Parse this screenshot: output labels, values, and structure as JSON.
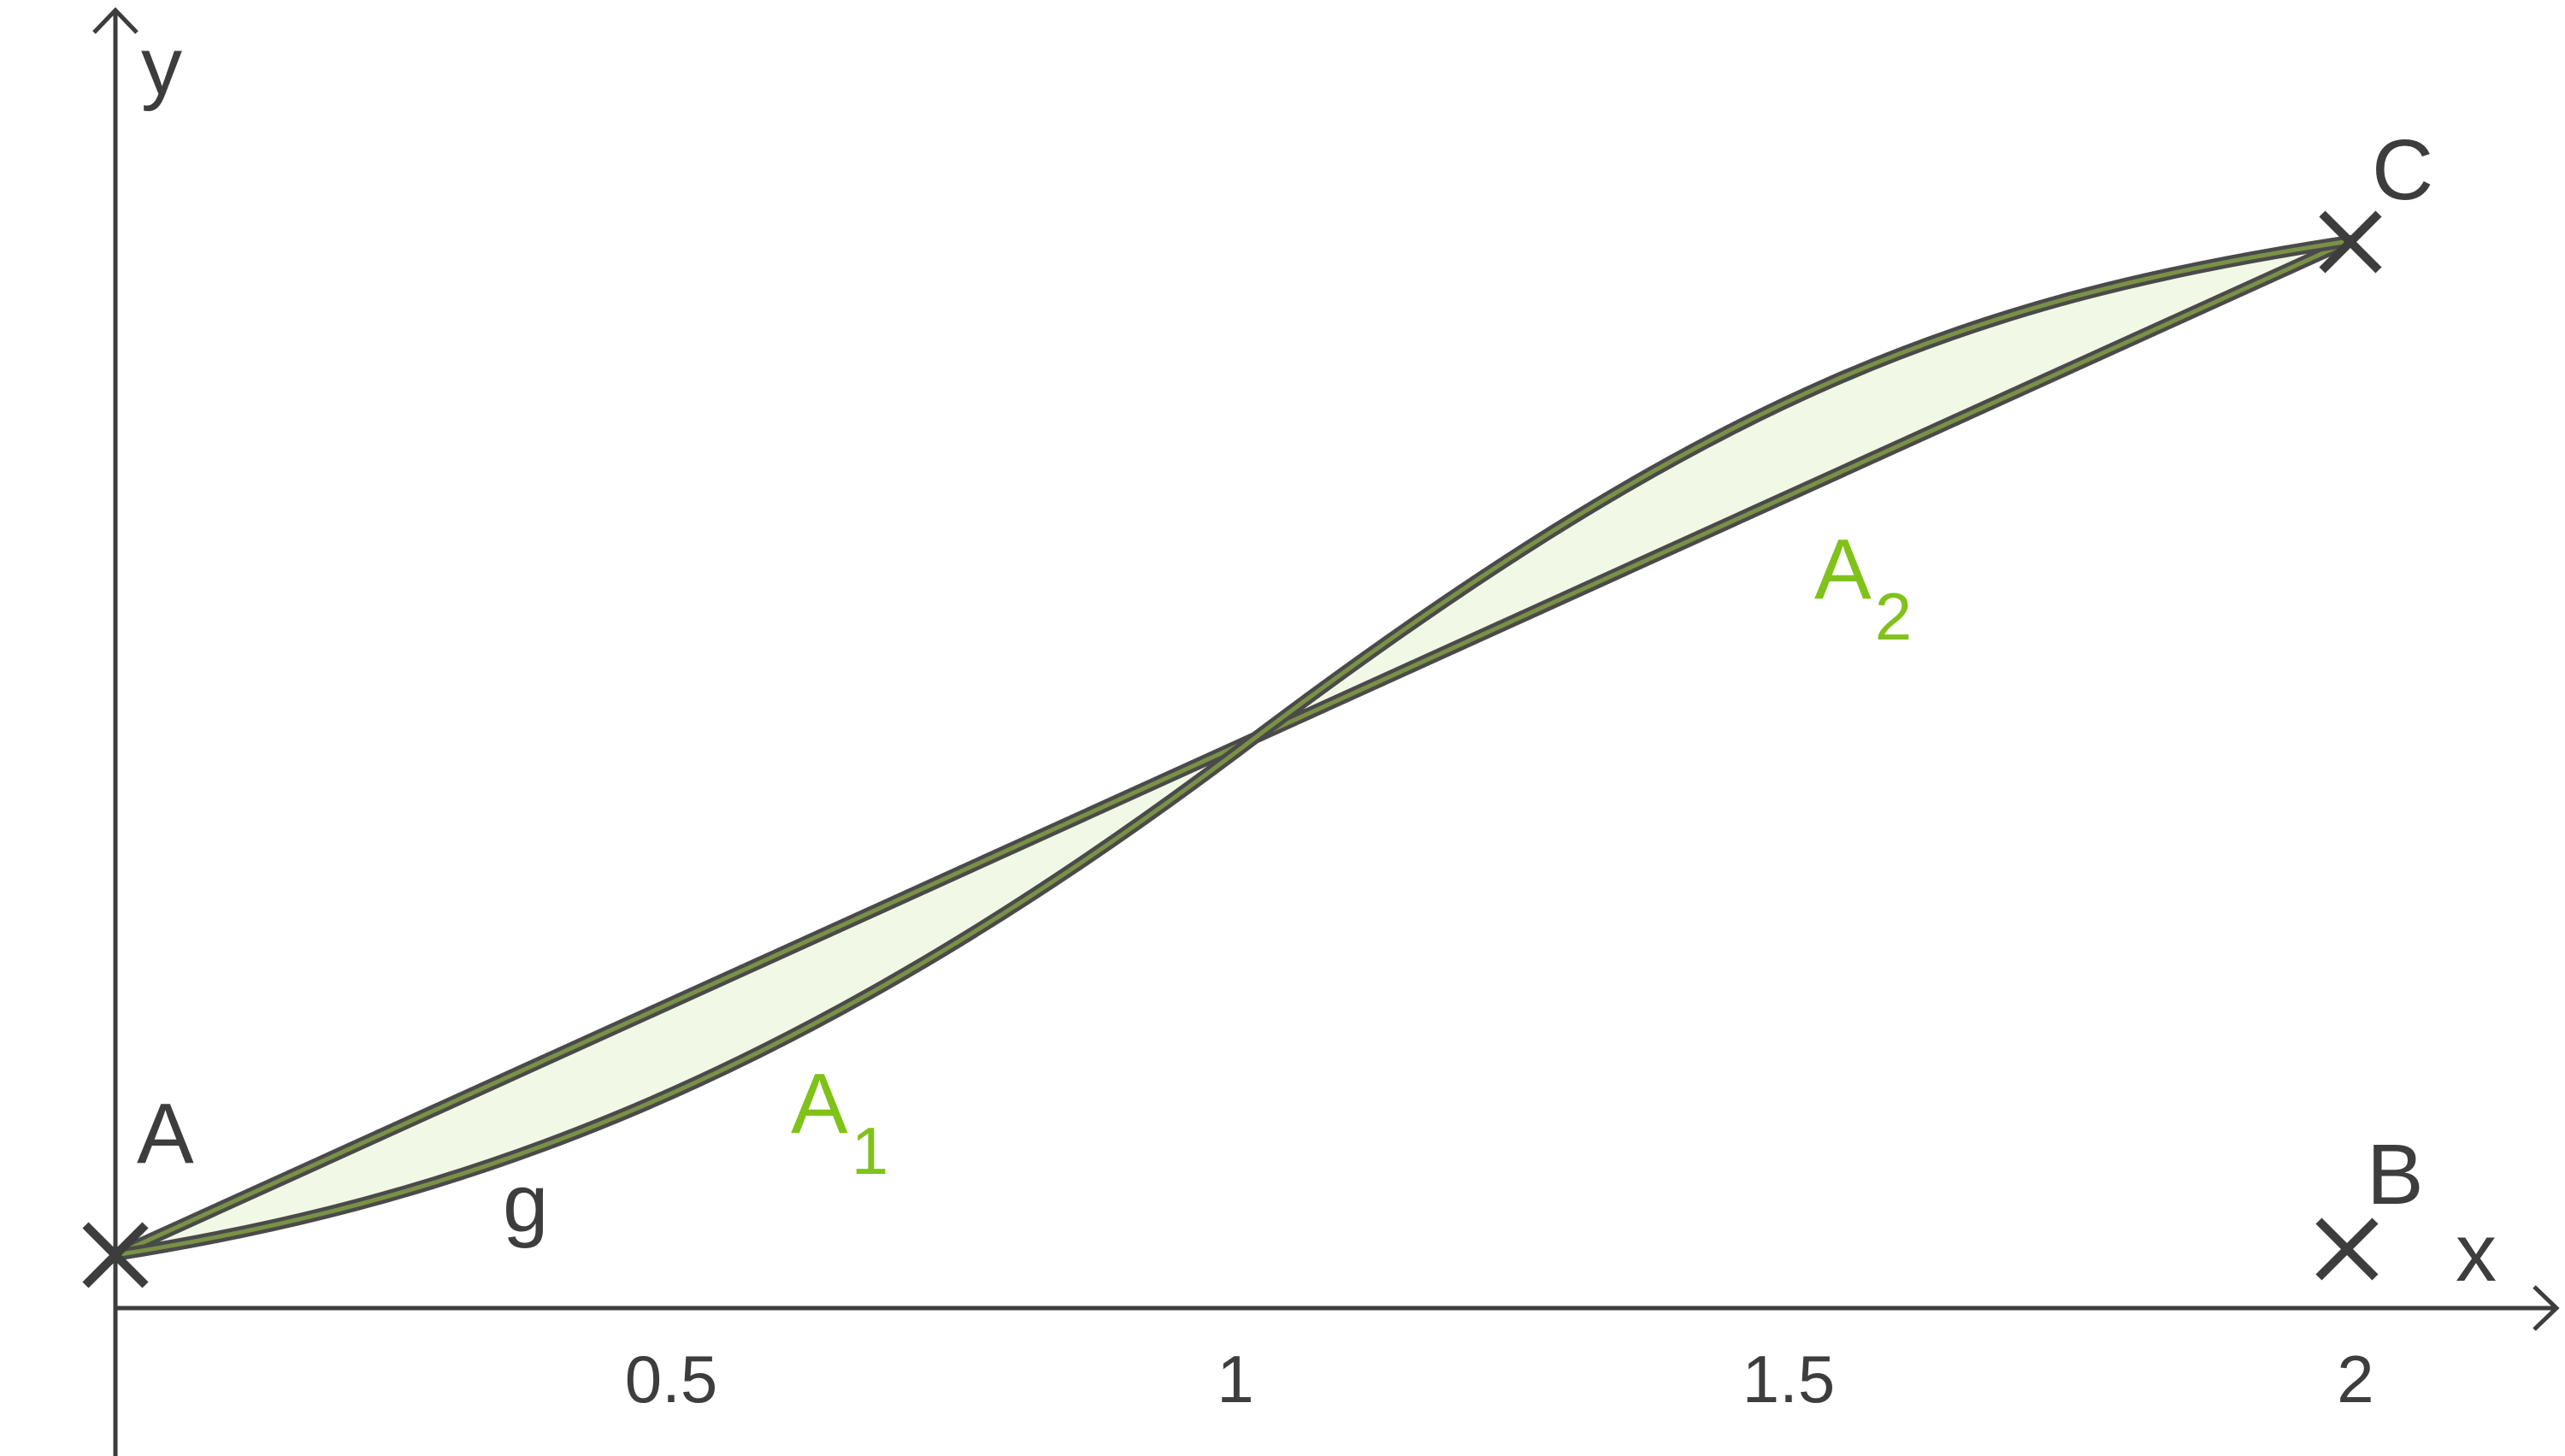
{
  "axes": {
    "x_label": "x",
    "y_label": "y",
    "x_ticks": [
      "0.5",
      "1",
      "1.5",
      "2"
    ]
  },
  "points": {
    "A": {
      "label": "A",
      "x": 0,
      "y": 0.05
    },
    "B": {
      "label": "B",
      "x": 2,
      "y": 0.05
    },
    "C": {
      "label": "C",
      "x": 2,
      "y": 0.95
    }
  },
  "curve": {
    "label": "g"
  },
  "areas": {
    "A1": {
      "base": "A",
      "sub": "1"
    },
    "A2": {
      "base": "A",
      "sub": "2"
    }
  },
  "colors": {
    "axis": "#3d3d3d",
    "fill": "#f1f9e6",
    "edge": "#7a9146",
    "area_label": "#80c21a"
  }
}
